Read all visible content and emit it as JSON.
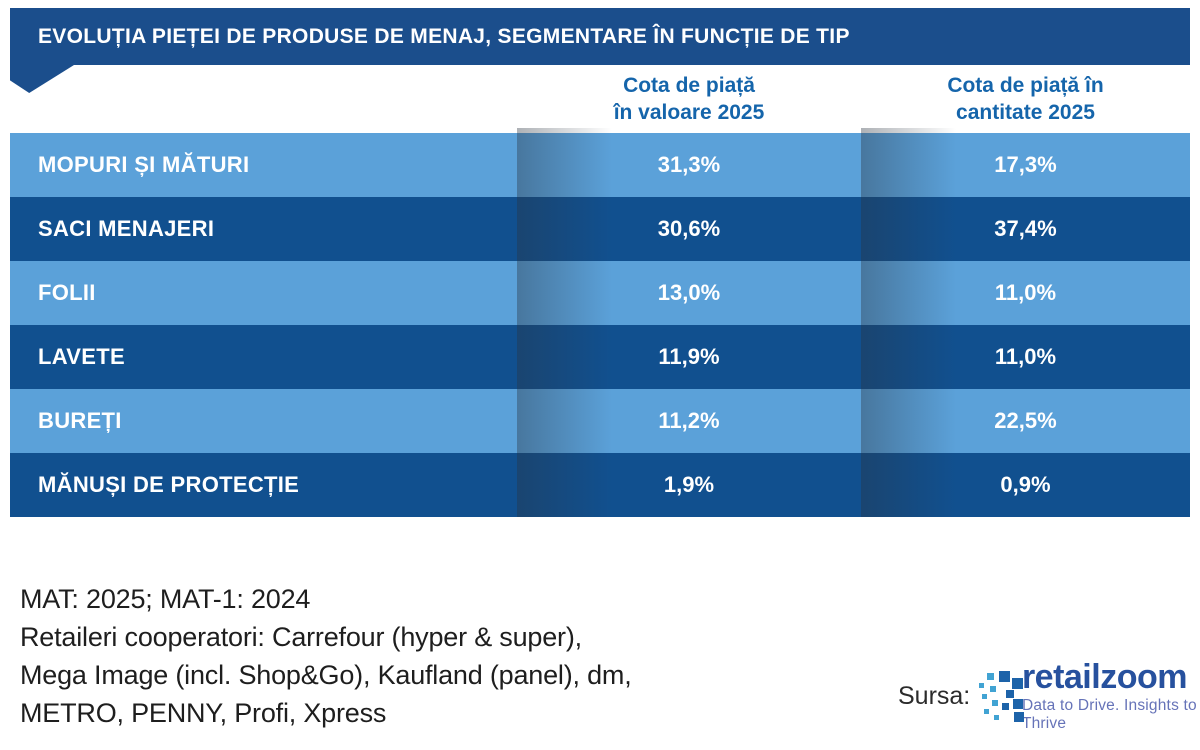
{
  "banner": {
    "title": "EVOLUȚIA PIEȚEI DE PRODUSE DE MENAJ, SEGMENTARE ÎN FUNCȚIE DE TIP"
  },
  "column_headers": [
    {
      "line1": "Cota de piață",
      "line2": "în valoare 2025"
    },
    {
      "line1": "Cota de piață în",
      "line2": "cantitate 2025"
    }
  ],
  "rows": [
    {
      "label": "MOPURI ȘI MĂTURI",
      "value": "31,3%",
      "quantity": "17,3%"
    },
    {
      "label": "SACI MENAJERI",
      "value": "30,6%",
      "quantity": "37,4%"
    },
    {
      "label": "FOLII",
      "value": "13,0%",
      "quantity": "11,0%"
    },
    {
      "label": "LAVETE",
      "value": "11,9%",
      "quantity": "11,0%"
    },
    {
      "label": "BUREȚI",
      "value": "11,2%",
      "quantity": "22,5%"
    },
    {
      "label": "MĂNUȘI DE PROTECȚIE",
      "value": "1,9%",
      "quantity": "0,9%"
    }
  ],
  "footnotes": {
    "lines": [
      "MAT: 2025; MAT-1: 2024",
      "Retaileri cooperatori: Carrefour (hyper & super),",
      "Mega Image (incl. Shop&Go), Kaufland (panel), dm,",
      "METRO, PENNY, Profi, Xpress"
    ]
  },
  "source": {
    "label": "Sursa:",
    "brand": "retailzoom",
    "tagline": "Data to Drive. Insights to Thrive"
  },
  "colors": {
    "banner_blue": "#1B4E8C",
    "row_light_blue": "#5BA1D9",
    "row_dark_blue": "#11508F",
    "column_header_text": "#1565AB",
    "brand_blue": "#27519E",
    "tagline_blue": "#6673B8",
    "logo_teal": "#41A3D3",
    "logo_dark_blue": "#1D63A9",
    "footnote_text": "#1E1E1E"
  },
  "chart_data": {
    "type": "table",
    "title": "EVOLUȚIA PIEȚEI DE PRODUSE DE MENAJ, SEGMENTARE ÎN FUNCȚIE DE TIP",
    "categories": [
      "MOPURI ȘI MĂTURI",
      "SACI MENAJERI",
      "FOLII",
      "LAVETE",
      "BUREȚI",
      "MĂNUȘI DE PROTECȚIE"
    ],
    "series": [
      {
        "name": "Cota de piață în valoare 2025",
        "values": [
          31.3,
          30.6,
          13.0,
          11.9,
          11.2,
          1.9
        ]
      },
      {
        "name": "Cota de piață în cantitate 2025",
        "values": [
          17.3,
          37.4,
          11.0,
          11.0,
          22.5,
          0.9
        ]
      }
    ],
    "unit": "%",
    "notes": "MAT: 2025; MAT-1: 2024. Retaileri cooperatori: Carrefour (hyper & super), Mega Image (incl. Shop&Go), Kaufland (panel), dm, METRO, PENNY, Profi, Xpress",
    "source": "retailzoom"
  }
}
